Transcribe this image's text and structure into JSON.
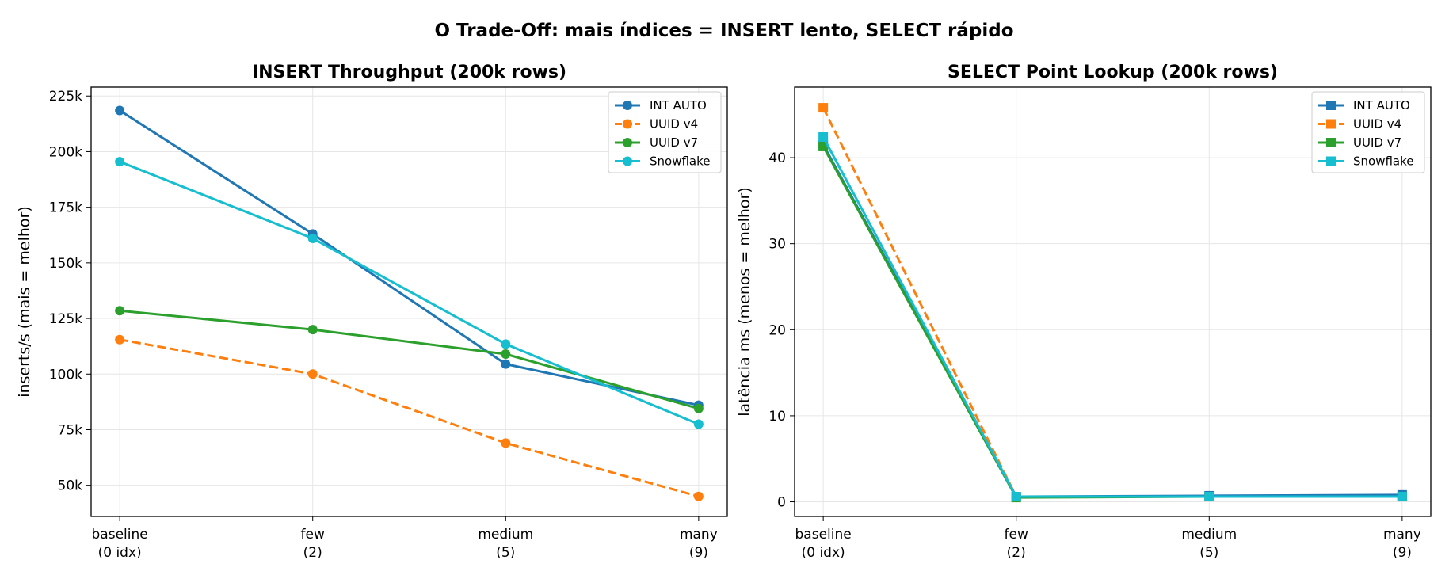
{
  "suptitle": "O Trade-Off: mais índices = INSERT lento, SELECT rápido",
  "colors": {
    "INT AUTO": "#1f77b4",
    "UUID v4": "#ff7f0e",
    "UUID v7": "#2ca02c",
    "Snowflake": "#17becf"
  },
  "chart_data": [
    {
      "type": "line",
      "title": "INSERT Throughput (200k rows)",
      "xlabel": "",
      "ylabel": "inserts/s (mais = melhor)",
      "categories": [
        "baseline\n(0 idx)",
        "few\n(2)",
        "medium\n(5)",
        "many\n(9)"
      ],
      "ylim": [
        36000,
        229000
      ],
      "yticks": [
        50000,
        75000,
        100000,
        125000,
        150000,
        175000,
        200000,
        225000
      ],
      "ytick_labels": [
        "50k",
        "75k",
        "100k",
        "125k",
        "150k",
        "175k",
        "200k",
        "225k"
      ],
      "grid": true,
      "legend": "top-right",
      "marker": "circle",
      "series": [
        {
          "name": "INT AUTO",
          "values": [
            218500,
            163000,
            104500,
            86000
          ],
          "dashed": false
        },
        {
          "name": "UUID v4",
          "values": [
            115500,
            100000,
            69000,
            45000
          ],
          "dashed": true
        },
        {
          "name": "UUID v7",
          "values": [
            128500,
            120000,
            109000,
            84500
          ],
          "dashed": false
        },
        {
          "name": "Snowflake",
          "values": [
            195500,
            161000,
            113500,
            77500
          ],
          "dashed": false
        }
      ]
    },
    {
      "type": "line",
      "title": "SELECT Point Lookup (200k rows)",
      "xlabel": "",
      "ylabel": "latência ms (menos = melhor)",
      "categories": [
        "baseline\n(0 idx)",
        "few\n(2)",
        "medium\n(5)",
        "many\n(9)"
      ],
      "ylim": [
        -1.7,
        48.2
      ],
      "yticks": [
        0,
        10,
        20,
        30,
        40
      ],
      "ytick_labels": [
        "0",
        "10",
        "20",
        "30",
        "40"
      ],
      "grid": true,
      "legend": "top-right",
      "marker": "square",
      "series": [
        {
          "name": "INT AUTO",
          "values": [
            41.5,
            0.6,
            0.7,
            0.8
          ],
          "dashed": false
        },
        {
          "name": "UUID v4",
          "values": [
            45.8,
            0.6,
            0.6,
            0.6
          ],
          "dashed": true
        },
        {
          "name": "UUID v7",
          "values": [
            41.3,
            0.5,
            0.6,
            0.6
          ],
          "dashed": false
        },
        {
          "name": "Snowflake",
          "values": [
            42.4,
            0.6,
            0.6,
            0.6
          ],
          "dashed": false
        }
      ]
    }
  ]
}
